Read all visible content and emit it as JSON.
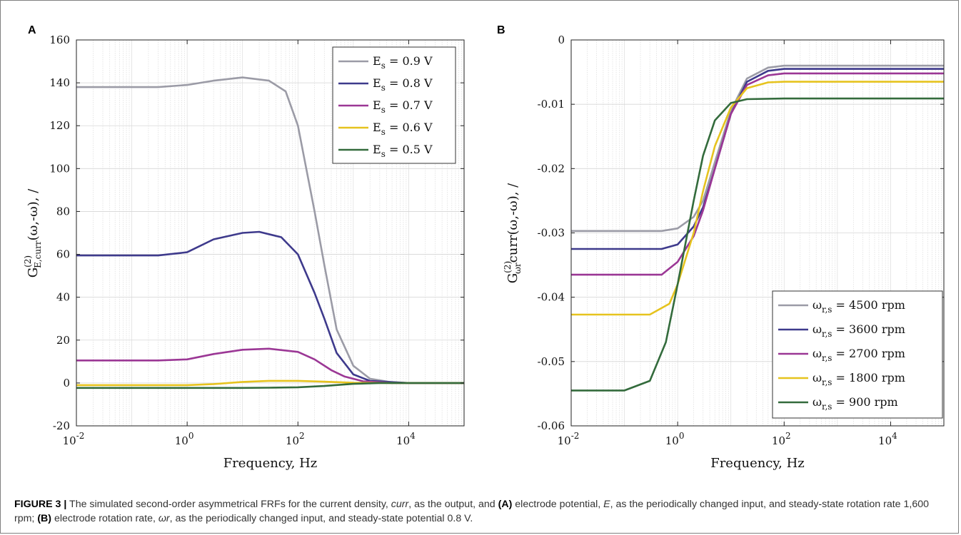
{
  "panels": {
    "a_letter": "A",
    "b_letter": "B"
  },
  "caption": {
    "label": "FIGURE 3 |",
    "p1": " The simulated second-order asymmetrical FRFs for the current density, ",
    "curr": "curr",
    "p2": ", as the output, and ",
    "a_tag": "(A)",
    "p3": " electrode potential, ",
    "E": "E",
    "p4": ", as the periodically changed input, and steady-state rotation rate 1,600 rpm; ",
    "b_tag": "(B)",
    "p5": " electrode rotation rate, ",
    "omega_r": "ωr",
    "p6": ", as the periodically changed input, and steady-state potential 0.8 V."
  },
  "chart_data": [
    {
      "type": "line",
      "panel": "A",
      "xlabel": "Frequency, Hz",
      "ylabel": "G(2)E,curr(ω,-ω), /",
      "xscale": "log",
      "xlim": [
        0.01,
        100000
      ],
      "ylim": [
        -20,
        160
      ],
      "xticks": [
        "10-2",
        "100",
        "102",
        "104"
      ],
      "yticks": [
        "-20",
        "0",
        "20",
        "40",
        "60",
        "80",
        "100",
        "120",
        "140",
        "160"
      ],
      "grid": true,
      "legend_position": "top-right",
      "series": [
        {
          "name": "Es = 0.9 V",
          "color": "#9b9ba6",
          "points": [
            [
              0.01,
              138
            ],
            [
              0.3,
              138
            ],
            [
              1,
              139
            ],
            [
              3,
              141
            ],
            [
              10,
              142.5
            ],
            [
              30,
              141
            ],
            [
              60,
              136
            ],
            [
              100,
              120
            ],
            [
              200,
              80
            ],
            [
              300,
              55
            ],
            [
              500,
              25
            ],
            [
              1000,
              8
            ],
            [
              2000,
              2
            ],
            [
              5000,
              0.3
            ],
            [
              10000,
              0
            ],
            [
              100000,
              0
            ]
          ]
        },
        {
          "name": "Es = 0.8 V",
          "color": "#3e3a8c",
          "points": [
            [
              0.01,
              59.5
            ],
            [
              0.3,
              59.5
            ],
            [
              1,
              61
            ],
            [
              3,
              67
            ],
            [
              10,
              70
            ],
            [
              20,
              70.5
            ],
            [
              50,
              68
            ],
            [
              100,
              60
            ],
            [
              200,
              42
            ],
            [
              300,
              30
            ],
            [
              500,
              14
            ],
            [
              1000,
              4
            ],
            [
              2000,
              1
            ],
            [
              10000,
              0
            ],
            [
              100000,
              0
            ]
          ]
        },
        {
          "name": "Es = 0.7 V",
          "color": "#9b3795",
          "points": [
            [
              0.01,
              10.5
            ],
            [
              0.3,
              10.5
            ],
            [
              1,
              11
            ],
            [
              3,
              13.5
            ],
            [
              10,
              15.5
            ],
            [
              30,
              16
            ],
            [
              100,
              14.5
            ],
            [
              200,
              11
            ],
            [
              400,
              6
            ],
            [
              700,
              3
            ],
            [
              1500,
              0.8
            ],
            [
              5000,
              0
            ],
            [
              100000,
              0
            ]
          ]
        },
        {
          "name": "Es = 0.6 V",
          "color": "#e6c31e",
          "points": [
            [
              0.01,
              -1
            ],
            [
              1,
              -1
            ],
            [
              3,
              -0.5
            ],
            [
              10,
              0.5
            ],
            [
              30,
              1
            ],
            [
              100,
              1
            ],
            [
              300,
              0.6
            ],
            [
              1000,
              0.1
            ],
            [
              5000,
              0
            ],
            [
              100000,
              0
            ]
          ]
        },
        {
          "name": "Es = 0.5 V",
          "color": "#336b3c",
          "points": [
            [
              0.01,
              -2.3
            ],
            [
              10,
              -2.3
            ],
            [
              30,
              -2.2
            ],
            [
              100,
              -2
            ],
            [
              300,
              -1.4
            ],
            [
              1000,
              -0.4
            ],
            [
              3000,
              0
            ],
            [
              100000,
              0
            ]
          ]
        }
      ]
    },
    {
      "type": "line",
      "panel": "B",
      "xlabel": "Frequency, Hz",
      "ylabel": "G(2)ωr,curr(ω,-ω), /",
      "xscale": "log",
      "xlim": [
        0.01,
        100000
      ],
      "ylim": [
        -0.06,
        0
      ],
      "xticks": [
        "10-2",
        "100",
        "102",
        "104"
      ],
      "yticks": [
        "0",
        "-0.01",
        "-0.02",
        "-0.03",
        "-0.04",
        "-0.05",
        "-0.06"
      ],
      "grid": true,
      "legend_position": "bottom-right",
      "series": [
        {
          "name": "ωr,s = 4500 rpm",
          "color": "#9b9ba6",
          "points": [
            [
              0.01,
              -0.0297
            ],
            [
              0.5,
              -0.0297
            ],
            [
              1,
              -0.0293
            ],
            [
              2,
              -0.0275
            ],
            [
              3,
              -0.025
            ],
            [
              5,
              -0.019
            ],
            [
              10,
              -0.011
            ],
            [
              20,
              -0.006
            ],
            [
              50,
              -0.0043
            ],
            [
              100,
              -0.004
            ],
            [
              100000,
              -0.004
            ]
          ]
        },
        {
          "name": "ωr,s = 3600 rpm",
          "color": "#3e3a8c",
          "points": [
            [
              0.01,
              -0.0325
            ],
            [
              0.5,
              -0.0325
            ],
            [
              1,
              -0.0318
            ],
            [
              2,
              -0.029
            ],
            [
              3,
              -0.026
            ],
            [
              5,
              -0.02
            ],
            [
              10,
              -0.0115
            ],
            [
              20,
              -0.0065
            ],
            [
              50,
              -0.0048
            ],
            [
              100,
              -0.0045
            ],
            [
              100000,
              -0.0045
            ]
          ]
        },
        {
          "name": "ωr,s = 2700 rpm",
          "color": "#9b3795",
          "points": [
            [
              0.01,
              -0.0365
            ],
            [
              0.5,
              -0.0365
            ],
            [
              1,
              -0.0345
            ],
            [
              2,
              -0.0305
            ],
            [
              3,
              -0.0265
            ],
            [
              5,
              -0.02
            ],
            [
              10,
              -0.0115
            ],
            [
              20,
              -0.007
            ],
            [
              50,
              -0.0055
            ],
            [
              100,
              -0.0052
            ],
            [
              100000,
              -0.0052
            ]
          ]
        },
        {
          "name": "ωr,s = 1800 rpm",
          "color": "#e6c31e",
          "points": [
            [
              0.01,
              -0.0427
            ],
            [
              0.3,
              -0.0427
            ],
            [
              0.7,
              -0.041
            ],
            [
              1,
              -0.038
            ],
            [
              2,
              -0.03
            ],
            [
              3,
              -0.0235
            ],
            [
              5,
              -0.0165
            ],
            [
              10,
              -0.0105
            ],
            [
              20,
              -0.0075
            ],
            [
              50,
              -0.0066
            ],
            [
              100,
              -0.0065
            ],
            [
              100000,
              -0.0065
            ]
          ]
        },
        {
          "name": "ωr,s = 900 rpm",
          "color": "#336b3c",
          "points": [
            [
              0.01,
              -0.0545
            ],
            [
              0.1,
              -0.0545
            ],
            [
              0.3,
              -0.053
            ],
            [
              0.6,
              -0.047
            ],
            [
              1,
              -0.038
            ],
            [
              2,
              -0.025
            ],
            [
              3,
              -0.018
            ],
            [
              5,
              -0.0125
            ],
            [
              10,
              -0.0098
            ],
            [
              20,
              -0.0092
            ],
            [
              100,
              -0.0091
            ],
            [
              100000,
              -0.0091
            ]
          ]
        }
      ]
    }
  ]
}
